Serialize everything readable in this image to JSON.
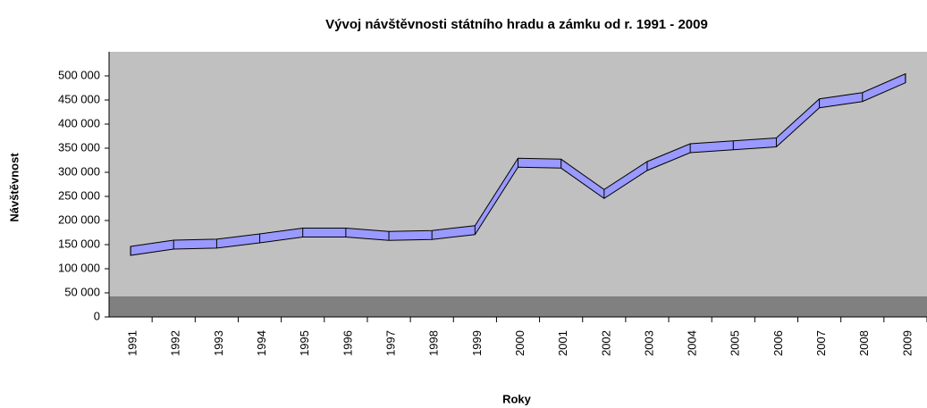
{
  "chart_data": {
    "type": "line3d",
    "title": "Vývoj návštěvnosti státního hradu a zámku od r. 1991 - 2009",
    "x_label": "Roky",
    "y_label": "Návštěvnost",
    "categories": [
      "1991",
      "1992",
      "1993",
      "1994",
      "1995",
      "1996",
      "1997",
      "1998",
      "1999",
      "2000",
      "2001",
      "2002",
      "2003",
      "2004",
      "2005",
      "2006",
      "2007",
      "2008",
      "2009"
    ],
    "series": [
      {
        "name": "Návštěvnost",
        "color": "#9999ff",
        "values": [
          137000,
          150000,
          152000,
          163000,
          175000,
          175000,
          168000,
          170000,
          180000,
          320000,
          318000,
          255000,
          313000,
          350000,
          356000,
          362000,
          443000,
          456000,
          495000
        ]
      }
    ],
    "ylim": [
      0,
      550000
    ],
    "yticks": [
      0,
      {
        "value": 50000,
        "label": "50 000"
      },
      {
        "value": 100000,
        "label": "100 000"
      },
      {
        "value": 150000,
        "label": "150 000"
      },
      {
        "value": 200000,
        "label": "200 000"
      },
      {
        "value": 250000,
        "label": "250 000"
      },
      {
        "value": 300000,
        "label": "300 000"
      },
      {
        "value": 350000,
        "label": "350 000"
      },
      {
        "value": 400000,
        "label": "400 000"
      },
      {
        "value": 450000,
        "label": "450 000"
      },
      {
        "value": 500000,
        "label": "500 000"
      }
    ],
    "grid": false
  }
}
